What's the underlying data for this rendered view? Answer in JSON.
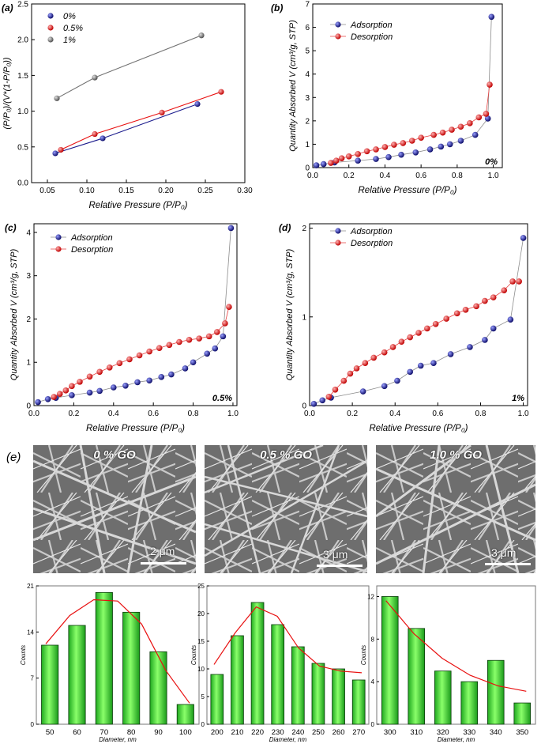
{
  "figure": {
    "panel_e_label": "(e)"
  },
  "chart_data": [
    {
      "id": "a",
      "panel_label": "(a)",
      "type": "line",
      "xlabel": "Relative Pressure (P/P₀)",
      "ylabel": "(P/P₀)/(V*(1-P/P₀))",
      "xlim": [
        0.03,
        0.3
      ],
      "ylim": [
        0.0,
        2.5
      ],
      "xticks": [
        "0.05",
        "0.10",
        "0.15",
        "0.20",
        "0.25",
        "0.30"
      ],
      "yticks": [
        "0.0",
        "0.5",
        "1.0",
        "1.5",
        "2.0",
        "2.5"
      ],
      "legend_position": "top-left",
      "series": [
        {
          "name": "0%",
          "color": "#1a1a8c",
          "x": [
            0.06,
            0.12,
            0.24
          ],
          "y": [
            0.41,
            0.62,
            1.1
          ]
        },
        {
          "name": "0.5%",
          "color": "#e81010",
          "x": [
            0.067,
            0.11,
            0.195,
            0.27
          ],
          "y": [
            0.46,
            0.68,
            0.98,
            1.27
          ]
        },
        {
          "name": "1%",
          "color": "#707070",
          "x": [
            0.062,
            0.11,
            0.245
          ],
          "y": [
            1.18,
            1.47,
            2.06
          ]
        }
      ]
    },
    {
      "id": "b",
      "panel_label": "(b)",
      "type": "line",
      "tag": "0%",
      "xlabel": "Relative Pressure (P/P₀)",
      "ylabel": "Quantity Absorbed V (cm³/g, STP)",
      "xlim": [
        0,
        1.05
      ],
      "ylim": [
        0,
        7
      ],
      "xticks": [
        "0.0",
        "0.2",
        "0.4",
        "0.6",
        "0.8",
        "1.0"
      ],
      "yticks": [
        "0",
        "1",
        "2",
        "3",
        "4",
        "5",
        "6",
        "7"
      ],
      "legend_position": "top-left",
      "series": [
        {
          "name": "Adsorption",
          "color": "#1a1a8c",
          "x": [
            0.02,
            0.06,
            0.12,
            0.25,
            0.35,
            0.42,
            0.49,
            0.57,
            0.65,
            0.71,
            0.76,
            0.82,
            0.9,
            0.97,
            0.99
          ],
          "y": [
            0.1,
            0.15,
            0.22,
            0.3,
            0.37,
            0.45,
            0.55,
            0.65,
            0.78,
            0.9,
            1.0,
            1.15,
            1.4,
            2.1,
            6.45
          ]
        },
        {
          "name": "Desorption",
          "color": "#e81010",
          "x": [
            0.1,
            0.13,
            0.16,
            0.2,
            0.25,
            0.3,
            0.35,
            0.4,
            0.45,
            0.5,
            0.55,
            0.6,
            0.67,
            0.72,
            0.77,
            0.82,
            0.87,
            0.92,
            0.96,
            0.98
          ],
          "y": [
            0.2,
            0.3,
            0.4,
            0.48,
            0.58,
            0.7,
            0.78,
            0.88,
            0.98,
            1.05,
            1.15,
            1.28,
            1.4,
            1.5,
            1.62,
            1.75,
            1.9,
            2.15,
            2.3,
            3.55
          ]
        }
      ]
    },
    {
      "id": "c",
      "panel_label": "(c)",
      "type": "line",
      "tag": "0.5%",
      "xlabel": "Relative Pressure (P/P₀)",
      "ylabel": "Quantity Absorbed V (cm³/g, STP)",
      "xlim": [
        0,
        1.02
      ],
      "ylim": [
        0,
        4.2
      ],
      "xticks": [
        "0.0",
        "0.2",
        "0.4",
        "0.6",
        "0.8",
        "1.0"
      ],
      "yticks": [
        "0",
        "1",
        "2",
        "3",
        "4"
      ],
      "legend_position": "top-left",
      "series": [
        {
          "name": "Adsorption",
          "color": "#1a1a8c",
          "x": [
            0.02,
            0.07,
            0.11,
            0.19,
            0.28,
            0.33,
            0.4,
            0.46,
            0.52,
            0.58,
            0.64,
            0.69,
            0.76,
            0.8,
            0.87,
            0.91,
            0.95,
            0.99
          ],
          "y": [
            0.08,
            0.15,
            0.18,
            0.24,
            0.3,
            0.34,
            0.42,
            0.46,
            0.54,
            0.58,
            0.66,
            0.72,
            0.86,
            1.0,
            1.2,
            1.32,
            1.6,
            4.1
          ]
        },
        {
          "name": "Desorption",
          "color": "#e81010",
          "x": [
            0.1,
            0.13,
            0.16,
            0.19,
            0.23,
            0.28,
            0.33,
            0.38,
            0.43,
            0.48,
            0.53,
            0.58,
            0.63,
            0.68,
            0.73,
            0.78,
            0.83,
            0.88,
            0.92,
            0.96,
            0.98
          ],
          "y": [
            0.2,
            0.27,
            0.35,
            0.45,
            0.55,
            0.67,
            0.78,
            0.88,
            0.98,
            1.07,
            1.16,
            1.25,
            1.33,
            1.4,
            1.47,
            1.52,
            1.55,
            1.6,
            1.7,
            1.9,
            2.28
          ]
        }
      ]
    },
    {
      "id": "d",
      "panel_label": "(d)",
      "type": "line",
      "tag": "1%",
      "xlabel": "Relative Pressure (P/P₀)",
      "ylabel": "Quantity Absorbed V (cm³/g, STP)",
      "xlim": [
        0,
        1.02
      ],
      "ylim": [
        0,
        2.05
      ],
      "xticks": [
        "0.0",
        "0.2",
        "0.4",
        "0.6",
        "0.8",
        "1.0"
      ],
      "yticks": [
        "0",
        "1",
        "2"
      ],
      "legend_position": "top-left",
      "series": [
        {
          "name": "Adsorption",
          "color": "#1a1a8c",
          "x": [
            0.02,
            0.06,
            0.1,
            0.25,
            0.35,
            0.41,
            0.47,
            0.52,
            0.58,
            0.66,
            0.75,
            0.82,
            0.86,
            0.94,
            1.0
          ],
          "y": [
            0.02,
            0.06,
            0.09,
            0.16,
            0.22,
            0.28,
            0.38,
            0.45,
            0.48,
            0.58,
            0.66,
            0.74,
            0.87,
            0.97,
            1.89
          ]
        },
        {
          "name": "Desorption",
          "color": "#e81010",
          "x": [
            0.09,
            0.12,
            0.16,
            0.19,
            0.22,
            0.26,
            0.3,
            0.35,
            0.39,
            0.43,
            0.47,
            0.51,
            0.55,
            0.59,
            0.64,
            0.69,
            0.73,
            0.78,
            0.82,
            0.86,
            0.91,
            0.95,
            0.98
          ],
          "y": [
            0.1,
            0.18,
            0.28,
            0.36,
            0.42,
            0.48,
            0.54,
            0.6,
            0.66,
            0.72,
            0.77,
            0.82,
            0.87,
            0.92,
            0.98,
            1.04,
            1.08,
            1.12,
            1.18,
            1.22,
            1.3,
            1.4,
            1.4
          ]
        }
      ]
    },
    {
      "id": "e1",
      "type": "bar",
      "categories": [
        "50",
        "60",
        "70",
        "80",
        "90",
        "100"
      ],
      "values": [
        12,
        15,
        20,
        17,
        11,
        3
      ],
      "xlabel": "Diameter, nm",
      "ylabel": "Counts",
      "ylim": [
        0,
        21
      ],
      "yticks": [
        "0",
        "7",
        "14",
        "21"
      ],
      "fit": [
        12.2,
        16.5,
        18.9,
        18.7,
        15.2,
        8.2,
        3.2
      ]
    },
    {
      "id": "e2",
      "type": "bar",
      "categories": [
        "200",
        "210",
        "220",
        "230",
        "240",
        "250",
        "260",
        "270"
      ],
      "values": [
        9,
        16,
        22,
        18,
        14,
        11,
        10,
        8
      ],
      "xlabel": "Diameter, nm",
      "ylabel": "Counts",
      "ylim": [
        0,
        25
      ],
      "yticks": [
        "0",
        "5",
        "10",
        "15",
        "20",
        "25"
      ],
      "fit": [
        10.8,
        16.5,
        21.2,
        19.5,
        13.8,
        10.5,
        9.6,
        9.3
      ]
    },
    {
      "id": "e3",
      "type": "bar",
      "categories": [
        "300",
        "310",
        "320",
        "330",
        "340",
        "350"
      ],
      "values": [
        12,
        9,
        5,
        4,
        6,
        2
      ],
      "xlabel": "Diameter, nm",
      "ylabel": "Counts",
      "ylim": [
        0,
        13
      ],
      "yticks": [
        "0",
        "4",
        "8",
        "12"
      ],
      "fit": [
        11.6,
        8.5,
        6.2,
        4.6,
        3.6,
        3.1
      ]
    }
  ],
  "sem_images": [
    {
      "title": "0 % GO",
      "scale": "2 μm"
    },
    {
      "title": "0.5 % GO",
      "scale": "3 μm"
    },
    {
      "title": "1.0 % GO",
      "scale": "3 μm"
    }
  ]
}
